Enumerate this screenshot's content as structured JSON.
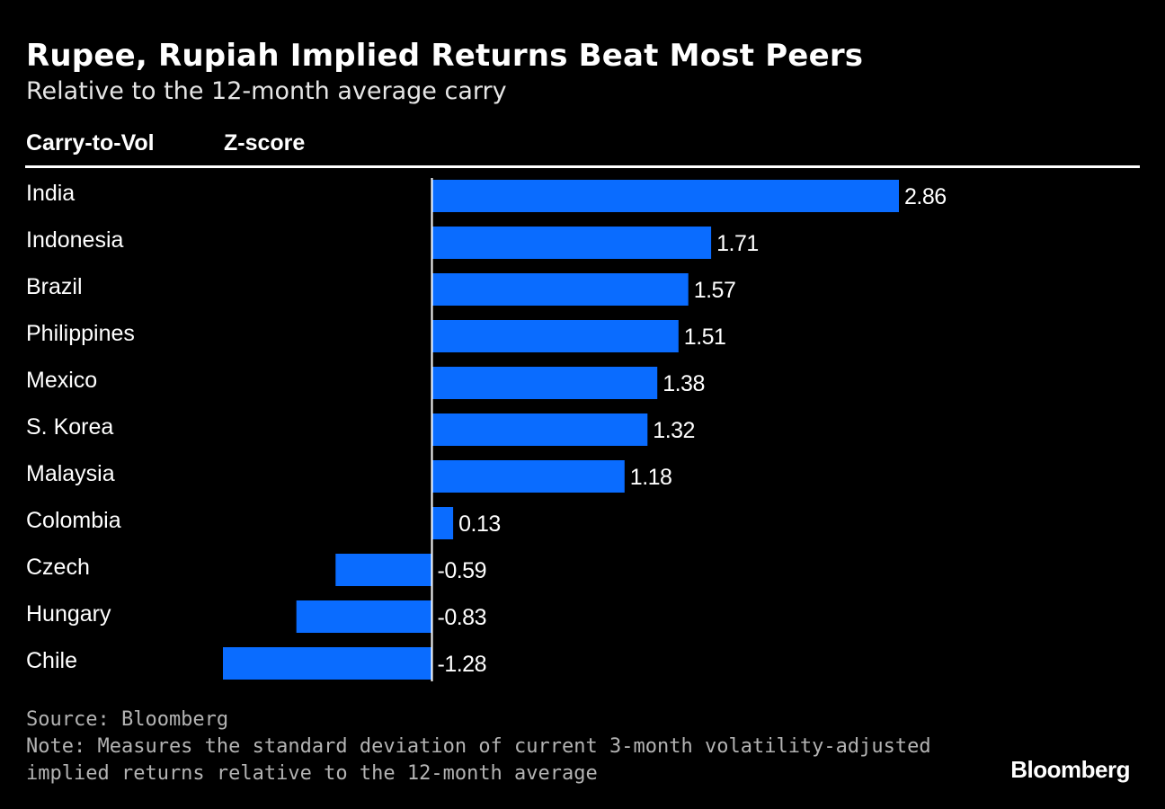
{
  "chart_data": {
    "type": "bar",
    "orientation": "horizontal",
    "title": "Rupee, Rupiah Implied Returns Beat Most Peers",
    "subtitle": "Relative to the 12-month average carry",
    "category_header": "Carry-to-Vol",
    "value_header": "Z-score",
    "categories": [
      "India",
      "Indonesia",
      "Brazil",
      "Philippines",
      "Mexico",
      "S. Korea",
      "Malaysia",
      "Colombia",
      "Czech",
      "Hungary",
      "Chile"
    ],
    "values": [
      2.86,
      1.71,
      1.57,
      1.51,
      1.38,
      1.32,
      1.18,
      0.13,
      -0.59,
      -0.83,
      -1.28
    ],
    "value_labels": [
      "2.86",
      "1.71",
      "1.57",
      "1.51",
      "1.38",
      "1.32",
      "1.18",
      "0.13",
      "-0.59",
      "-0.83",
      "-1.28"
    ],
    "xlim": [
      -1.28,
      2.86
    ],
    "grid": false,
    "bar_color": "#0a6cff",
    "zero_line_color": "#ffffff"
  },
  "footer": {
    "source": "Source: Bloomberg",
    "note_line1": "Note: Measures the standard deviation of current 3-month volatility-adjusted",
    "note_line2": "implied returns relative to the 12-month average"
  },
  "brand": {
    "name": "Bloomberg"
  }
}
